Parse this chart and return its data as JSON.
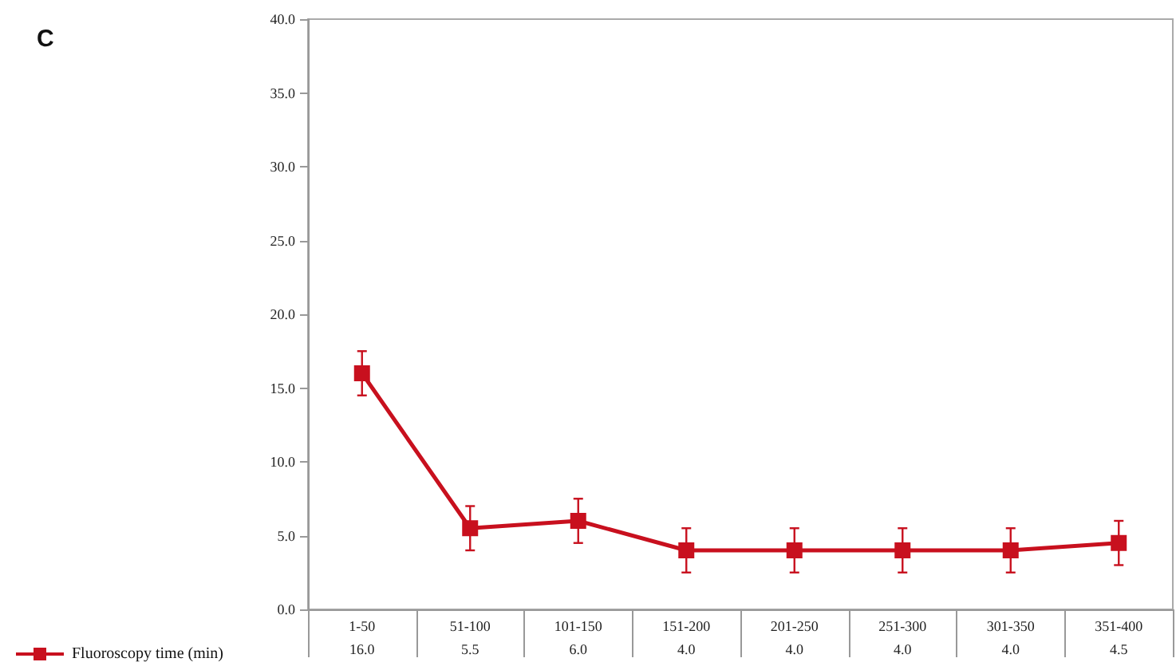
{
  "chart_data": {
    "type": "line",
    "title": "C",
    "categories": [
      "1-50",
      "51-100",
      "101-150",
      "151-200",
      "201-250",
      "251-300",
      "301-350",
      "351-400"
    ],
    "series": [
      {
        "name": "Fluoroscopy time (min)",
        "color": "#c8101e",
        "values": [
          16.0,
          5.5,
          6.0,
          4.0,
          4.0,
          4.0,
          4.0,
          4.5
        ],
        "errors": [
          1.5,
          1.5,
          1.5,
          1.5,
          1.5,
          1.5,
          1.5,
          1.5
        ],
        "value_labels": [
          "16.0",
          "5.5",
          "6.0",
          "4.0",
          "4.0",
          "4.0",
          "4.0",
          "4.5"
        ]
      }
    ],
    "ylim": [
      0,
      40
    ],
    "yticks": [
      {
        "value": 0,
        "label": "0.0"
      },
      {
        "value": 5,
        "label": "5.0"
      },
      {
        "value": 10,
        "label": "10.0"
      },
      {
        "value": 15,
        "label": "15.0"
      },
      {
        "value": 20,
        "label": "20.0"
      },
      {
        "value": 25,
        "label": "25.0"
      },
      {
        "value": 30,
        "label": "30.0"
      },
      {
        "value": 35,
        "label": "35.0"
      },
      {
        "value": 40,
        "label": "40.0"
      }
    ],
    "grid": false,
    "legend": "bottom left",
    "marker": "square",
    "line_style": "solid"
  }
}
